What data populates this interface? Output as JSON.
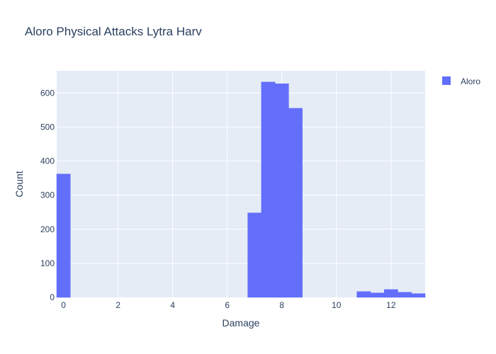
{
  "chart_data": {
    "type": "bar",
    "title": "Aloro Physical Attacks Lytra Harv",
    "xlabel": "Damage",
    "ylabel": "Count",
    "xlim": [
      -0.25,
      13.25
    ],
    "ylim": [
      0,
      665
    ],
    "x_ticks": [
      0,
      2,
      4,
      6,
      8,
      10,
      12
    ],
    "y_ticks": [
      0,
      100,
      200,
      300,
      400,
      500,
      600
    ],
    "bin_width": 0.5,
    "grid": true,
    "legend_position": "top-right",
    "series": [
      {
        "name": "Aloro",
        "color": "#636efa",
        "bins": [
          {
            "start": -0.25,
            "end": 0.25,
            "count": 362
          },
          {
            "start": 6.75,
            "end": 7.25,
            "count": 248
          },
          {
            "start": 7.25,
            "end": 7.75,
            "count": 632
          },
          {
            "start": 7.75,
            "end": 8.25,
            "count": 627
          },
          {
            "start": 8.25,
            "end": 8.75,
            "count": 555
          },
          {
            "start": 10.75,
            "end": 11.25,
            "count": 17
          },
          {
            "start": 11.25,
            "end": 11.75,
            "count": 13
          },
          {
            "start": 11.75,
            "end": 12.25,
            "count": 23
          },
          {
            "start": 12.25,
            "end": 12.75,
            "count": 15
          },
          {
            "start": 12.75,
            "end": 13.25,
            "count": 11
          }
        ]
      }
    ]
  }
}
